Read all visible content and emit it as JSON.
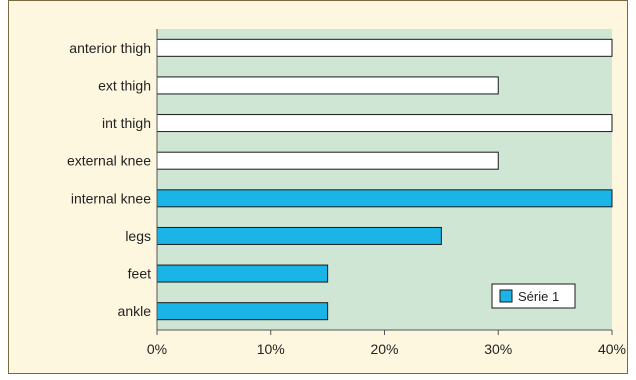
{
  "chart_data": {
    "type": "bar",
    "orientation": "horizontal",
    "categories": [
      "anterior thigh",
      "ext thigh",
      "int thigh",
      "external knee",
      "internal knee",
      "legs",
      "feet",
      "ankle"
    ],
    "series": [
      {
        "name": "Série 1",
        "values": [
          40,
          30,
          40,
          30,
          40,
          25,
          15,
          15
        ]
      }
    ],
    "bar_fill_colors": [
      "#ffffff",
      "#ffffff",
      "#ffffff",
      "#ffffff",
      "#1ab4e6",
      "#1ab4e6",
      "#1ab4e6",
      "#1ab4e6"
    ],
    "xlim": [
      0,
      40
    ],
    "x_ticks": [
      "0%",
      "10%",
      "20%",
      "30%",
      "40%"
    ],
    "x_unit": "%",
    "legend_position": "bottom-right inside plot",
    "grid": false,
    "colors": {
      "plot_background": "#cfe6d5",
      "page_background": "#fef7e0",
      "bar_accent": "#1ab4e6",
      "bar_outline": "#1a1a1a"
    }
  }
}
